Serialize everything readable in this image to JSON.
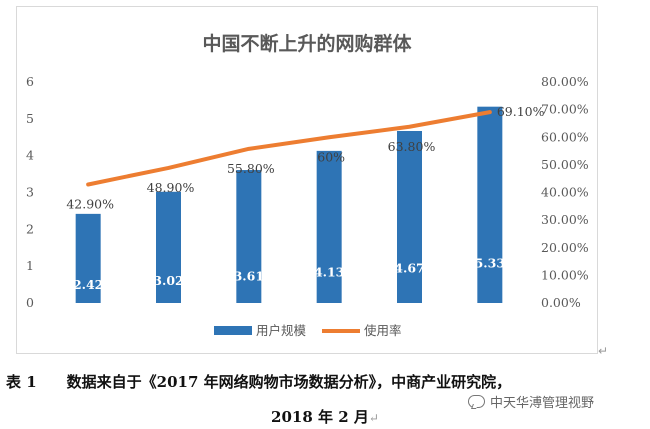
{
  "chart_data": {
    "type": "bar",
    "title": "中国不断上升的网购群体",
    "categories": [
      "",
      "",
      "",
      "",
      "",
      ""
    ],
    "series": [
      {
        "name": "用户规模",
        "kind": "bar",
        "axis": "left",
        "color": "#2e74b5",
        "values": [
          2.42,
          3.02,
          3.61,
          4.13,
          4.67,
          5.33
        ],
        "labels": [
          "2.42",
          "3.02",
          "3.61",
          "4.13",
          "4.67",
          "5.33"
        ]
      },
      {
        "name": "使用率",
        "kind": "line",
        "axis": "right",
        "color": "#ed7d31",
        "values": [
          42.9,
          48.9,
          55.8,
          60,
          63.8,
          69.1
        ],
        "labels": [
          "42.90%",
          "48.90%",
          "55.80%",
          "60%",
          "63.80%",
          "69.10%"
        ]
      }
    ],
    "ylim": [
      0,
      6
    ],
    "yticks": [
      "0",
      "1",
      "2",
      "3",
      "4",
      "5",
      "6"
    ],
    "y2lim": [
      0,
      80
    ],
    "y2ticks": [
      "0.00%",
      "10.00%",
      "20.00%",
      "30.00%",
      "40.00%",
      "50.00%",
      "60.00%",
      "70.00%",
      "80.00%"
    ],
    "grid": false,
    "legend": "bottom"
  },
  "caption": {
    "line1": "表 1　　数据来自于《2017 年网络购物市场数据分析》，中商产业研究院，",
    "line2": "2018 年 2 月",
    "return_mark": "↵"
  },
  "watermark": {
    "text": "中天华溥管理视野",
    "icon": "wechat-icon"
  }
}
